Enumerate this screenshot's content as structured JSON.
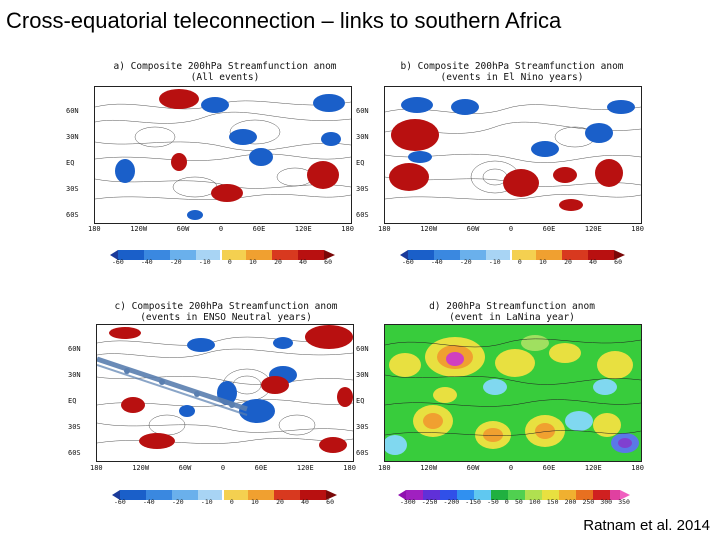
{
  "slide_title": "Cross-equatorial teleconnection – links to southern Africa",
  "credit": "Ratnam et al. 2014",
  "lat_labels": [
    "60N",
    "30N",
    "EQ",
    "30S",
    "60S"
  ],
  "lon_labels": [
    "180",
    "120W",
    "60W",
    "0",
    "60E",
    "120E",
    "180"
  ],
  "lon_labels_c": [
    "180",
    "120W",
    "60W",
    "0",
    "60E",
    "120E",
    "180"
  ],
  "panels": {
    "a": {
      "title_line1": "a) Composite 200hPa Streamfunction anom",
      "title_line2": "(All events)"
    },
    "b": {
      "title_line1": "b) Composite 200hPa Streamfunction anom",
      "title_line2": "(events in El Nino years)"
    },
    "c": {
      "title_line1": "c) Composite 200hPa Streamfunction anom",
      "title_line2": "(events in ENSO Neutral years)"
    },
    "d": {
      "title_line1": "d) 200hPa Streamfunction anom",
      "title_line2": "(event in LaNina year)"
    }
  },
  "colorbar_small": [
    "-60",
    "-40",
    "-20",
    "-10",
    "0",
    "10",
    "20",
    "40",
    "60"
  ],
  "colorbar_c": [
    "-60",
    "-40",
    "-20",
    "-10",
    "0",
    "10",
    "20",
    "40",
    "60"
  ],
  "colorbar_large": [
    "-300",
    "-250",
    "-200",
    "-150",
    "-50",
    "0",
    "50",
    "100",
    "150",
    "200",
    "250",
    "300",
    "350"
  ],
  "colors": {
    "blue_dark": "#1a5fc9",
    "blue_mid": "#3a88e0",
    "red_dark": "#b81010",
    "red_mid": "#d8391f",
    "green_base": "#2ec83a",
    "yellow": "#e8e040",
    "orange": "#f0a030"
  }
}
